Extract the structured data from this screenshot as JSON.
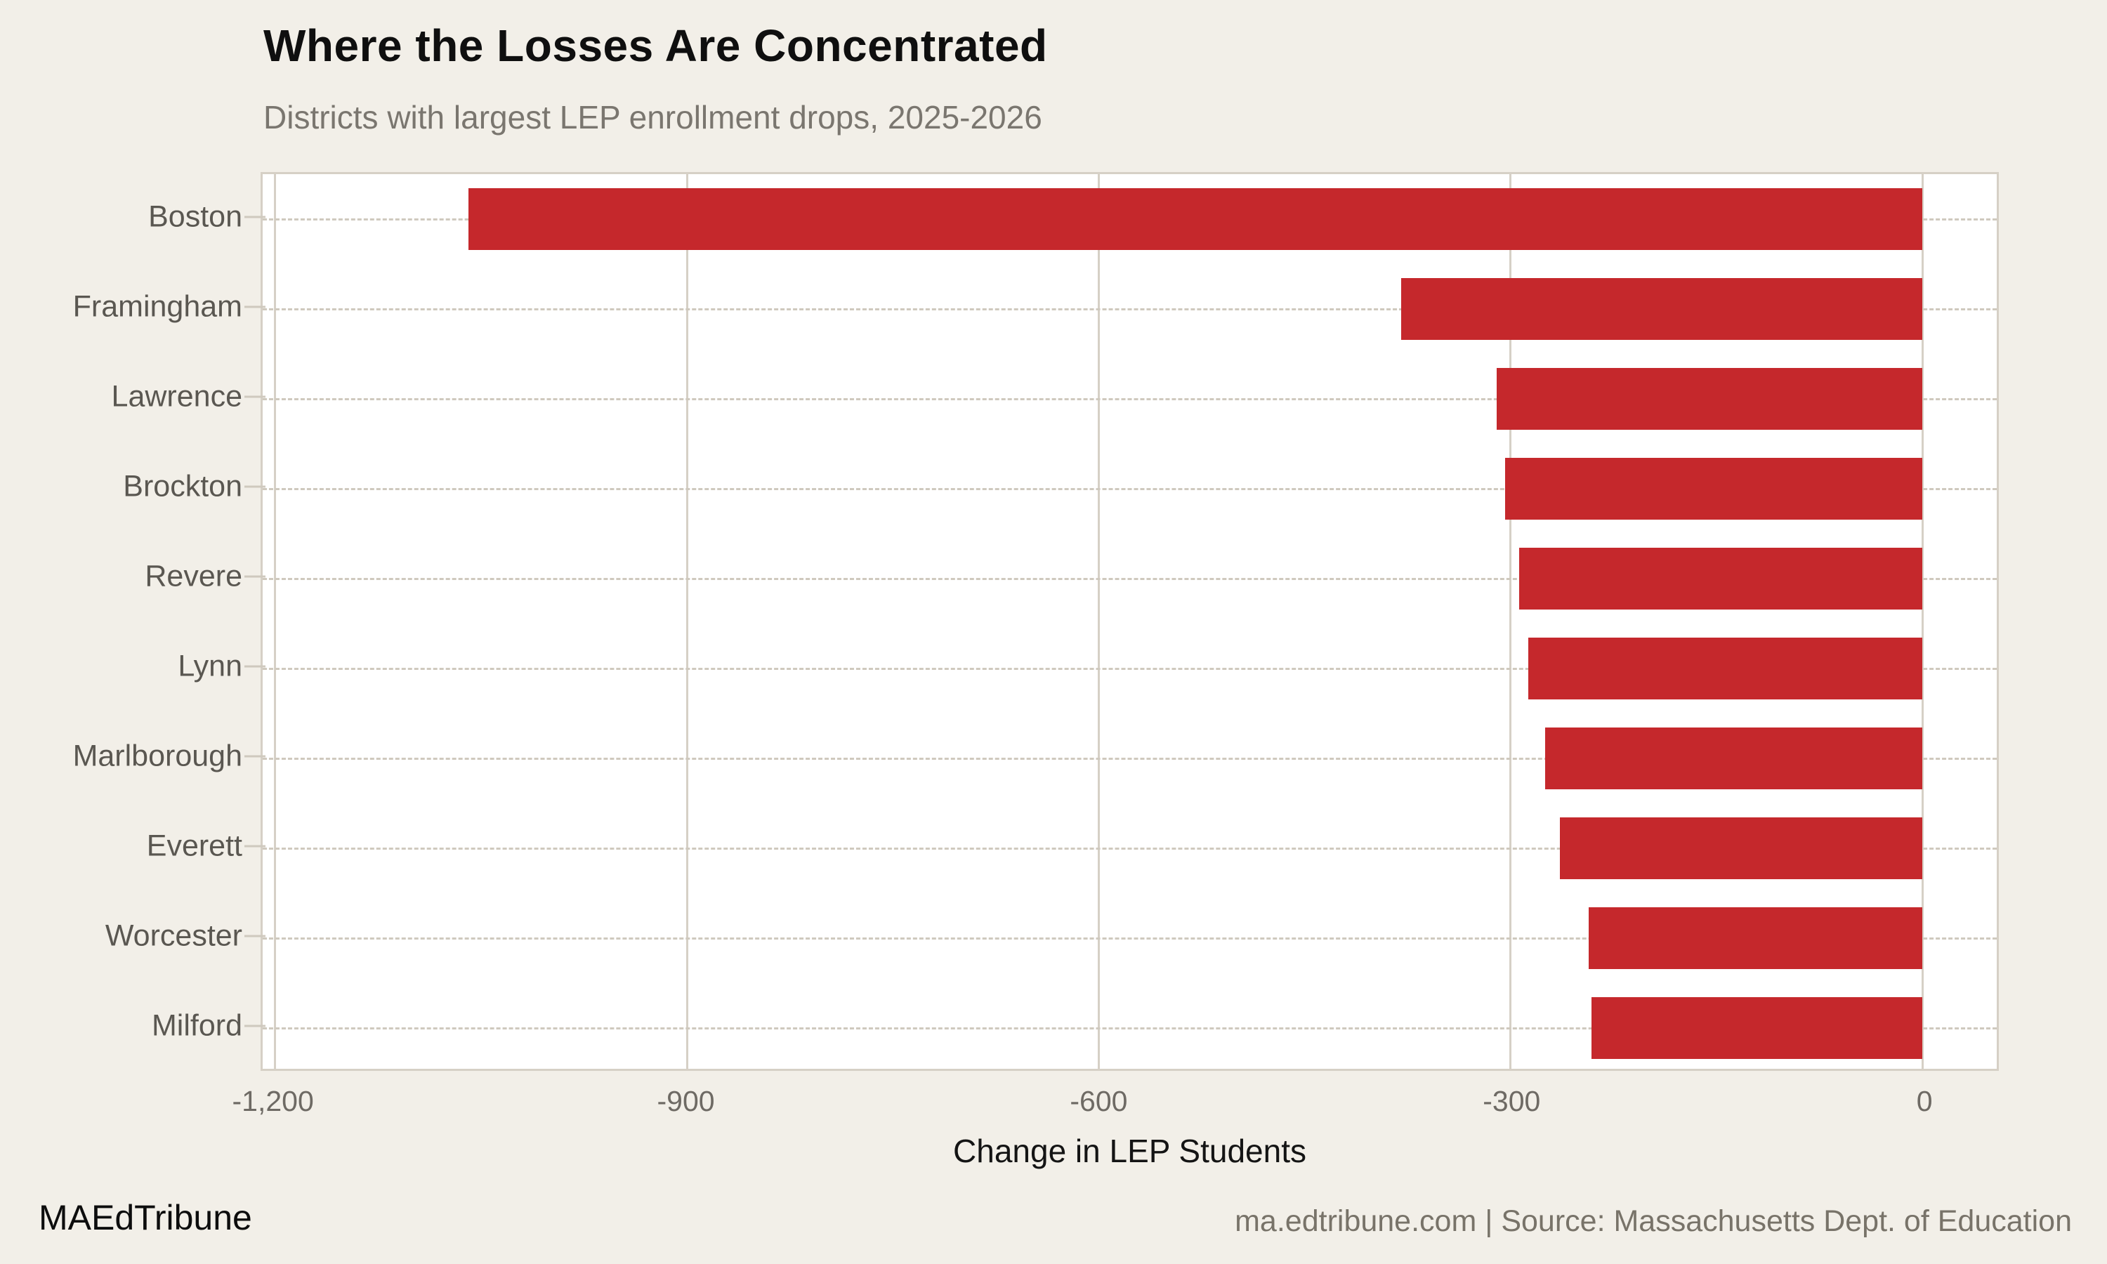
{
  "header": {
    "title": "Where the Losses Are Concentrated",
    "subtitle": "Districts with largest LEP enrollment drops, 2025-2026"
  },
  "chart_data": {
    "type": "bar",
    "orientation": "horizontal",
    "title": "Where the Losses Are Concentrated",
    "subtitle": "Districts with largest LEP enrollment drops, 2025-2026",
    "categories": [
      "Boston",
      "Framingham",
      "Lawrence",
      "Brockton",
      "Revere",
      "Lynn",
      "Marlborough",
      "Everett",
      "Worcester",
      "Milford"
    ],
    "values": [
      -1059,
      -380,
      -310,
      -304,
      -294,
      -287,
      -275,
      -264,
      -243,
      -241
    ],
    "xlabel": "Change in LEP Students",
    "ylabel": "",
    "xlim": [
      -1209,
      54
    ],
    "xticks": {
      "values": [
        -1200,
        -900,
        -600,
        -300,
        0
      ],
      "labels": [
        "-1,200",
        "-900",
        "-600",
        "-300",
        "0"
      ]
    },
    "grid": "vertical-only",
    "legend": "none",
    "bar_color": "#C5282C"
  },
  "colors": {
    "background": "#F2EFE8",
    "panel": "#FFFFFF",
    "bar": "#C5282C",
    "gridline": "#D6D0C6",
    "leader_dash": "#CFC9BE",
    "title_text": "#0F0F0F",
    "subtitle_text": "#7A766F",
    "axis_text": "#6E6A64"
  },
  "footer": {
    "brand": "MAEdTribune",
    "source": "ma.edtribune.com | Source: Massachusetts Dept. of Education"
  }
}
